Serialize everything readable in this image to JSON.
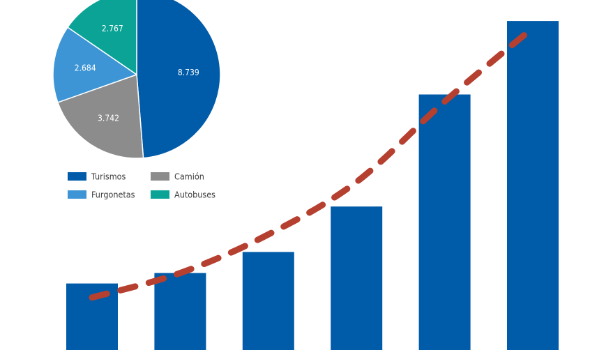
{
  "chart_data": [
    {
      "type": "pie",
      "title": "",
      "slices": [
        {
          "label": "Turismos",
          "value": 8739,
          "display": "8.739",
          "color": "#005ba9"
        },
        {
          "label": "Camión",
          "value": 3742,
          "display": "3.742",
          "color": "#8c8c8c"
        },
        {
          "label": "Furgonetas",
          "value": 2684,
          "display": "2.684",
          "color": "#3d95d6"
        },
        {
          "label": "Autobuses",
          "value": 2767,
          "display": "2.767",
          "color": "#0aa396"
        }
      ],
      "legend": {
        "placement": "below",
        "entries": [
          {
            "label": "Turismos",
            "color": "#005ba9"
          },
          {
            "label": "Camión",
            "color": "#8c8c8c"
          },
          {
            "label": "Furgonetas",
            "color": "#3d95d6"
          },
          {
            "label": "Autobuses",
            "color": "#0aa396"
          }
        ]
      }
    },
    {
      "type": "bar",
      "title": "",
      "xlabel": "",
      "ylabel": "",
      "categories": [
        "",
        "",
        "",
        "",
        "",
        ""
      ],
      "values": [
        19,
        22,
        28,
        41,
        73,
        94
      ],
      "ylim": [
        0,
        100
      ],
      "bar_color": "#005ba9",
      "trend": {
        "style": "dashed",
        "color": "#b64030",
        "values": [
          15,
          22,
          33,
          48,
          71,
          92
        ]
      },
      "grid": false,
      "axes_visible": false
    }
  ]
}
